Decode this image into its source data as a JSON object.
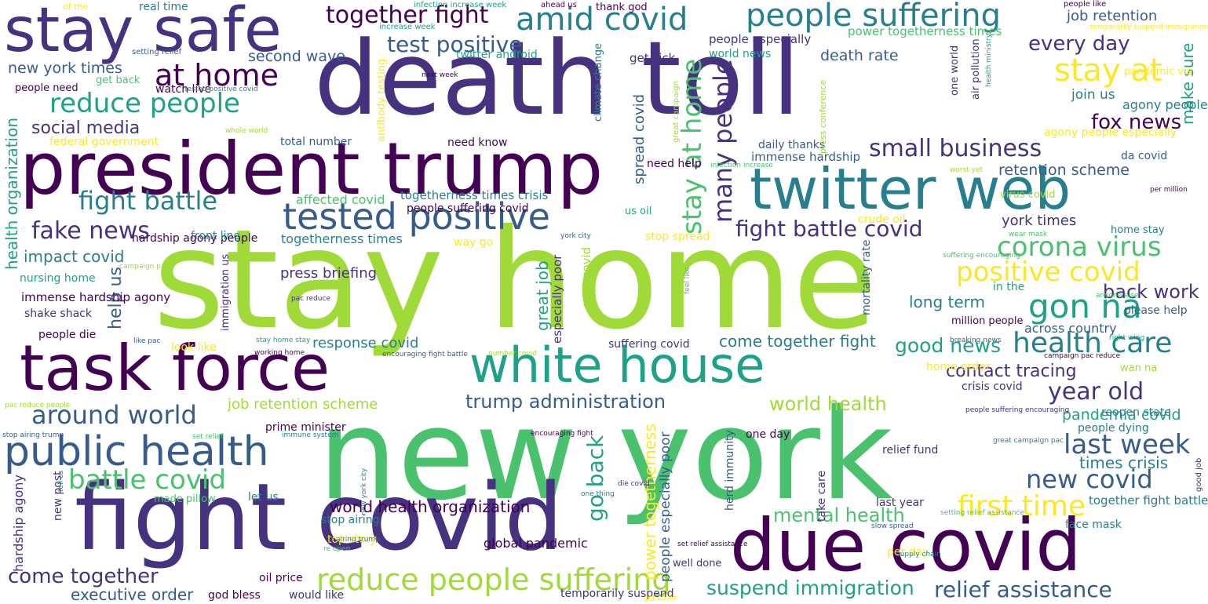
{
  "colors": [
    "#440154",
    "#46327e",
    "#365c8d",
    "#277f8e",
    "#1fa187",
    "#4ac16d",
    "#a0da39",
    "#fde725"
  ],
  "words": [
    {
      "text": "stay home",
      "c": 6
    },
    {
      "text": "new york",
      "c": 5
    },
    {
      "text": "death toll",
      "c": 1
    },
    {
      "text": "president trump",
      "c": 0
    },
    {
      "text": "fight covid",
      "c": 1
    },
    {
      "text": "due covid",
      "c": 0
    },
    {
      "text": "task force",
      "c": 0
    },
    {
      "text": "white house",
      "c": 4
    },
    {
      "text": "stay safe",
      "c": 1
    },
    {
      "text": "twitter web",
      "c": 3
    },
    {
      "text": "public health",
      "c": 2
    },
    {
      "text": "tested positive",
      "c": 2
    },
    {
      "text": "people suffering",
      "c": 3
    },
    {
      "text": "reduce people suffering",
      "c": 6
    },
    {
      "text": "amid covid",
      "c": 3
    },
    {
      "text": "reduce people",
      "c": 4
    },
    {
      "text": "at home",
      "c": 0
    },
    {
      "text": "fake news",
      "c": 1
    },
    {
      "text": "fight battle",
      "c": 3
    },
    {
      "text": "around world",
      "c": 2
    },
    {
      "text": "battle covid",
      "c": 5
    },
    {
      "text": "corona virus",
      "c": 5
    },
    {
      "text": "positive covid",
      "c": 7
    },
    {
      "text": "health care",
      "c": 3
    },
    {
      "text": "gon na",
      "c": 4
    },
    {
      "text": "year old",
      "c": 1
    },
    {
      "text": "last week",
      "c": 2
    },
    {
      "text": "new covid",
      "c": 2
    },
    {
      "text": "first time",
      "c": 7
    },
    {
      "text": "relief assistance",
      "c": 2
    },
    {
      "text": "small business",
      "c": 1
    },
    {
      "text": "fight battle covid",
      "c": 1
    },
    {
      "text": "stay at",
      "c": 7
    },
    {
      "text": "stay at home",
      "c": 5
    },
    {
      "text": "many people",
      "c": 1
    },
    {
      "text": "social media",
      "c": 1
    },
    {
      "text": "together fight",
      "c": 0
    },
    {
      "text": "test positive",
      "c": 2
    },
    {
      "text": "fox news",
      "c": 0
    },
    {
      "text": "every day",
      "c": 1
    },
    {
      "text": "suspend immigration",
      "c": 4
    },
    {
      "text": "trump administration",
      "c": 2
    },
    {
      "text": "world health",
      "c": 6
    },
    {
      "text": "mental health",
      "c": 5
    },
    {
      "text": "come together",
      "c": 1
    },
    {
      "text": "executive order",
      "c": 2
    },
    {
      "text": "go back",
      "c": 4
    },
    {
      "text": "good news",
      "c": 4
    },
    {
      "text": "back work",
      "c": 1
    },
    {
      "text": "health organization",
      "c": 4
    },
    {
      "text": "world health organization",
      "c": 0
    },
    {
      "text": "help us",
      "c": 2
    },
    {
      "text": "come together fight",
      "c": 3
    },
    {
      "text": "contact tracing",
      "c": 1
    },
    {
      "text": "long term",
      "c": 3
    },
    {
      "text": "pandemia covid",
      "c": 4
    },
    {
      "text": "times crisis",
      "c": 3
    },
    {
      "text": "make sure",
      "c": 4
    },
    {
      "text": "second wave",
      "c": 2
    },
    {
      "text": "death rate",
      "c": 2
    },
    {
      "text": "impact covid",
      "c": 3
    },
    {
      "text": "response covid",
      "c": 3
    },
    {
      "text": "job retention scheme",
      "c": 6
    },
    {
      "text": "power togetherness",
      "c": 7
    },
    {
      "text": "spread covid",
      "c": 2
    },
    {
      "text": "press briefing",
      "c": 1
    },
    {
      "text": "great job",
      "c": 4
    },
    {
      "text": "retention scheme",
      "c": 2
    },
    {
      "text": "york times",
      "c": 1
    },
    {
      "text": "job retention",
      "c": 2
    },
    {
      "text": "new york times",
      "c": 2
    },
    {
      "text": "join us",
      "c": 3
    },
    {
      "text": "agony people",
      "c": 3
    },
    {
      "text": "agony people especially",
      "c": 7
    },
    {
      "text": "people especially poor",
      "c": 2
    },
    {
      "text": "togetherness times",
      "c": 3
    },
    {
      "text": "togetherness times crisis",
      "c": 3
    },
    {
      "text": "people especially",
      "c": 1
    },
    {
      "text": "power togetherness times",
      "c": 5
    },
    {
      "text": "world news",
      "c": 4
    },
    {
      "text": "get sick",
      "c": 1
    },
    {
      "text": "immense hardship agony",
      "c": 0
    },
    {
      "text": "hardship agony people",
      "c": 0
    },
    {
      "text": "immense hardship",
      "c": 2
    },
    {
      "text": "hardship agony",
      "c": 1
    },
    {
      "text": "affected covid",
      "c": 5
    },
    {
      "text": "federal government",
      "c": 7
    },
    {
      "text": "nursing home",
      "c": 4
    },
    {
      "text": "shake shack",
      "c": 1
    },
    {
      "text": "people die",
      "c": 0
    },
    {
      "text": "front line",
      "c": 3
    },
    {
      "text": "watch live",
      "c": 0
    },
    {
      "text": "get back",
      "c": 5
    },
    {
      "text": "people need",
      "c": 0
    },
    {
      "text": "real time",
      "c": 3
    },
    {
      "text": "twitter android",
      "c": 4
    },
    {
      "text": "across country",
      "c": 2
    },
    {
      "text": "together fight battle",
      "c": 3
    },
    {
      "text": "people dying",
      "c": 3
    },
    {
      "text": "crisis covid",
      "c": 1
    },
    {
      "text": "reopen state",
      "c": 3
    },
    {
      "text": "da covid",
      "c": 2
    },
    {
      "text": "daily thanks",
      "c": 2
    },
    {
      "text": "total number",
      "c": 2
    },
    {
      "text": "need help",
      "c": 0
    },
    {
      "text": "need know",
      "c": 0
    },
    {
      "text": "people suffering covid",
      "c": 0
    },
    {
      "text": "relief fund",
      "c": 1
    },
    {
      "text": "last year",
      "c": 1
    },
    {
      "text": "per day",
      "c": 7
    },
    {
      "text": "face mask",
      "c": 3
    },
    {
      "text": "take care",
      "c": 1
    },
    {
      "text": "herd immunity",
      "c": 2
    },
    {
      "text": "mortality rate",
      "c": 2
    },
    {
      "text": "immigration us",
      "c": 1
    },
    {
      "text": "global pandemic",
      "c": 0
    },
    {
      "text": "post covid",
      "c": 6
    },
    {
      "text": "especially poor",
      "c": 1
    },
    {
      "text": "suffering covid",
      "c": 1
    },
    {
      "text": "prime minister",
      "c": 0
    },
    {
      "text": "one day",
      "c": 0
    },
    {
      "text": "let us",
      "c": 3
    },
    {
      "text": "made pillow",
      "c": 5
    },
    {
      "text": "stop airing",
      "c": 3
    },
    {
      "text": "top story",
      "c": 7
    },
    {
      "text": "oil price",
      "c": 0
    },
    {
      "text": "god bless",
      "c": 0
    },
    {
      "text": "would like",
      "c": 1
    },
    {
      "text": "temporarily suspend",
      "c": 1
    },
    {
      "text": "well done",
      "c": 1
    },
    {
      "text": "new post",
      "c": 1
    },
    {
      "text": "million people",
      "c": 0
    },
    {
      "text": "home order",
      "c": 7
    },
    {
      "text": "in the",
      "c": 4
    },
    {
      "text": "please help",
      "c": 2
    },
    {
      "text": "home stay",
      "c": 3
    },
    {
      "text": "look like",
      "c": 7
    },
    {
      "text": "way go",
      "c": 7
    },
    {
      "text": "stop spread",
      "c": 7
    },
    {
      "text": "us oil",
      "c": 4
    },
    {
      "text": "crude oil",
      "c": 7
    },
    {
      "text": "wan na",
      "c": 6
    },
    {
      "text": "pandemic via",
      "c": 7
    },
    {
      "text": "one world",
      "c": 1
    },
    {
      "text": "air pollution",
      "c": 1
    },
    {
      "text": "climate change",
      "c": 3
    },
    {
      "text": "antibody testing",
      "c": 7
    },
    {
      "text": "press conference",
      "c": 6
    },
    {
      "text": "virus covid",
      "c": 6
    },
    {
      "text": "of the",
      "c": 7
    },
    {
      "text": "setting relief",
      "c": 2
    },
    {
      "text": "tested positive covid",
      "c": 3
    },
    {
      "text": "next week",
      "c": 0
    },
    {
      "text": "whole world",
      "c": 6
    },
    {
      "text": "increase week",
      "c": 4
    },
    {
      "text": "infection increase",
      "c": 5
    },
    {
      "text": "infection increase week",
      "c": 4
    },
    {
      "text": "ahead us",
      "c": 0
    },
    {
      "text": "thank god",
      "c": 0
    },
    {
      "text": "people like",
      "c": 0
    },
    {
      "text": "temporarily suspend immigration",
      "c": 7
    },
    {
      "text": "health ministry",
      "c": 4
    },
    {
      "text": "great campaign",
      "c": 6
    },
    {
      "text": "worst yet",
      "c": 6
    },
    {
      "text": "per million",
      "c": 0
    },
    {
      "text": "wear mask",
      "c": 5
    },
    {
      "text": "suffering encouraging",
      "c": 5
    },
    {
      "text": "anyone else",
      "c": 5
    },
    {
      "text": "right wing",
      "c": 4
    },
    {
      "text": "breaking news",
      "c": 2
    },
    {
      "text": "campaign pac reduce",
      "c": 0
    },
    {
      "text": "people suffering encouraging",
      "c": 1
    },
    {
      "text": "great campaign pac",
      "c": 3
    },
    {
      "text": "good job",
      "c": 1
    },
    {
      "text": "setting relief assistance",
      "c": 5
    },
    {
      "text": "slow spread",
      "c": 2
    },
    {
      "text": "set relief assistance",
      "c": 0
    },
    {
      "text": "supply chain",
      "c": 3
    },
    {
      "text": "get covid",
      "c": 7
    },
    {
      "text": "die covid",
      "c": 1
    },
    {
      "text": "one thing",
      "c": 3
    },
    {
      "text": "york city",
      "c": 2
    },
    {
      "text": "pac reduce",
      "c": 1
    },
    {
      "text": "feel like",
      "c": 5
    },
    {
      "text": "number covid",
      "c": 6
    },
    {
      "text": "stay home stay",
      "c": 4
    },
    {
      "text": "working home",
      "c": 0
    },
    {
      "text": "encouraging fight",
      "c": 0
    },
    {
      "text": "encouraging fight battle",
      "c": 2
    },
    {
      "text": "set relief",
      "c": 5
    },
    {
      "text": "immune system",
      "c": 3
    },
    {
      "text": "new york city",
      "c": 3
    },
    {
      "text": "re open",
      "c": 5
    },
    {
      "text": "airing trump",
      "c": 3
    },
    {
      "text": "campaign pac",
      "c": 6
    },
    {
      "text": "like pac",
      "c": 2
    },
    {
      "text": "pac reduce people",
      "c": 6
    },
    {
      "text": "stop airing trump",
      "c": 2
    },
    {
      "text": "tell us",
      "c": 3
    },
    {
      "text": "setting encouraging fight",
      "c": 7
    }
  ]
}
